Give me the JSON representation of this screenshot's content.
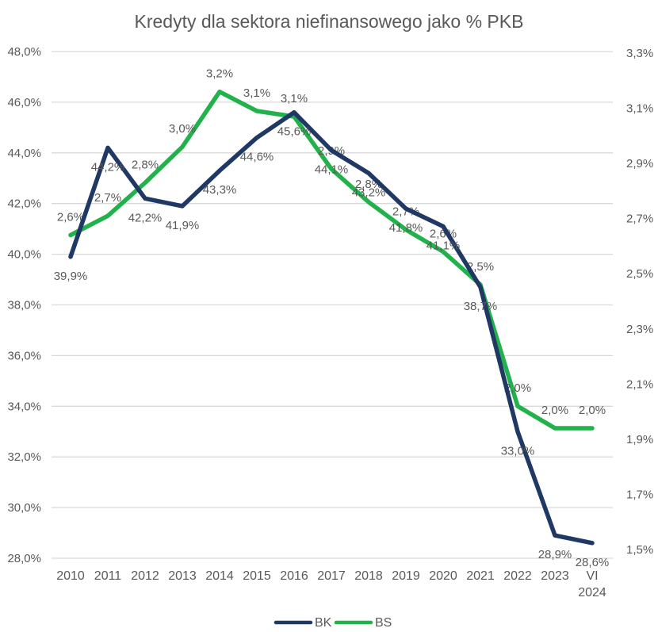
{
  "chart_data": {
    "type": "line",
    "title": "Kredyty dla sektora niefinansowego jako % PKB",
    "categories": [
      "2010",
      "2011",
      "2012",
      "2013",
      "2014",
      "2015",
      "2016",
      "2017",
      "2018",
      "2019",
      "2020",
      "2021",
      "2022",
      "2023",
      "VI 2024"
    ],
    "series": [
      {
        "name": "BK",
        "axis": "left",
        "color": "#1f3864",
        "values": [
          39.9,
          44.2,
          42.2,
          41.9,
          43.3,
          44.6,
          45.6,
          44.1,
          43.2,
          41.8,
          41.1,
          38.7,
          33.0,
          28.9,
          28.6
        ],
        "point_labels": [
          "39,9%",
          "44,2%",
          "42,2%",
          "41,9%",
          "43,3%",
          "44,6%",
          "45,6%",
          "44,1%",
          "43,2%",
          "41,8%",
          "41,1%",
          "38,7%",
          "33,0%",
          "28,9%",
          "28,6%"
        ]
      },
      {
        "name": "BS",
        "axis": "right",
        "color": "#21b24c",
        "values": [
          2.6,
          2.7,
          2.8,
          3.0,
          3.2,
          3.1,
          3.1,
          2.9,
          2.8,
          2.7,
          2.6,
          2.5,
          2.0,
          2.0,
          2.0
        ],
        "render_values": [
          2.64,
          2.71,
          2.83,
          2.96,
          3.16,
          3.09,
          3.07,
          2.88,
          2.76,
          2.66,
          2.58,
          2.46,
          2.02,
          1.94,
          1.94
        ],
        "point_labels": [
          "2,6%",
          "2,7%",
          "2,8%",
          "3,0%",
          "3,2%",
          "3,1%",
          "3,1%",
          "2,9%",
          "2,8%",
          "2,7%",
          "2,6%",
          "2,5%",
          "2,0%",
          "2,0%",
          "2,0%"
        ]
      }
    ],
    "left_axis": {
      "min": 28,
      "max": 48,
      "step": 2,
      "tick_labels": [
        "48,0%",
        "46,0%",
        "44,0%",
        "42,0%",
        "40,0%",
        "38,0%",
        "36,0%",
        "34,0%",
        "32,0%",
        "30,0%",
        "28,0%"
      ]
    },
    "right_axis": {
      "min": 1.5,
      "max": 3.3,
      "step": 0.2,
      "tick_labels": [
        "3,3%",
        "3,1%",
        "2,9%",
        "2,7%",
        "2,5%",
        "2,3%",
        "2,1%",
        "1,9%",
        "1,7%",
        "1,5%"
      ]
    },
    "legend": {
      "position": "bottom",
      "entries": [
        "BK",
        "BS"
      ]
    },
    "grid": "horizontal",
    "colors": {
      "grid": "#d9d9d9",
      "text": "#595959",
      "background": "#ffffff"
    }
  }
}
